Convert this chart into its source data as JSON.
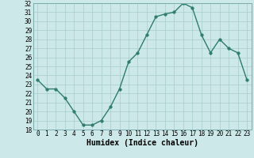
{
  "xlabel": "Humidex (Indice chaleur)",
  "x_values": [
    0,
    1,
    2,
    3,
    4,
    5,
    6,
    7,
    8,
    9,
    10,
    11,
    12,
    13,
    14,
    15,
    16,
    17,
    18,
    19,
    20,
    21,
    22,
    23
  ],
  "y_values": [
    23.5,
    22.5,
    22.5,
    21.5,
    20.0,
    18.5,
    18.5,
    19.0,
    20.5,
    22.5,
    25.5,
    26.5,
    28.5,
    30.5,
    30.8,
    31.0,
    32.0,
    31.5,
    28.5,
    26.5,
    28.0,
    27.0,
    26.5,
    23.5
  ],
  "line_color": "#2e7d6e",
  "marker_color": "#2e7d6e",
  "bg_color": "#cde8e8",
  "grid_color": "#a8cccc",
  "ylim": [
    18,
    32
  ],
  "yticks": [
    18,
    19,
    20,
    21,
    22,
    23,
    24,
    25,
    26,
    27,
    28,
    29,
    30,
    31,
    32
  ],
  "xticks": [
    0,
    1,
    2,
    3,
    4,
    5,
    6,
    7,
    8,
    9,
    10,
    11,
    12,
    13,
    14,
    15,
    16,
    17,
    18,
    19,
    20,
    21,
    22,
    23
  ],
  "xlim": [
    -0.5,
    23.5
  ],
  "tick_fontsize": 5.5,
  "xlabel_fontsize": 7,
  "line_width": 1.0,
  "marker_size": 2.5
}
